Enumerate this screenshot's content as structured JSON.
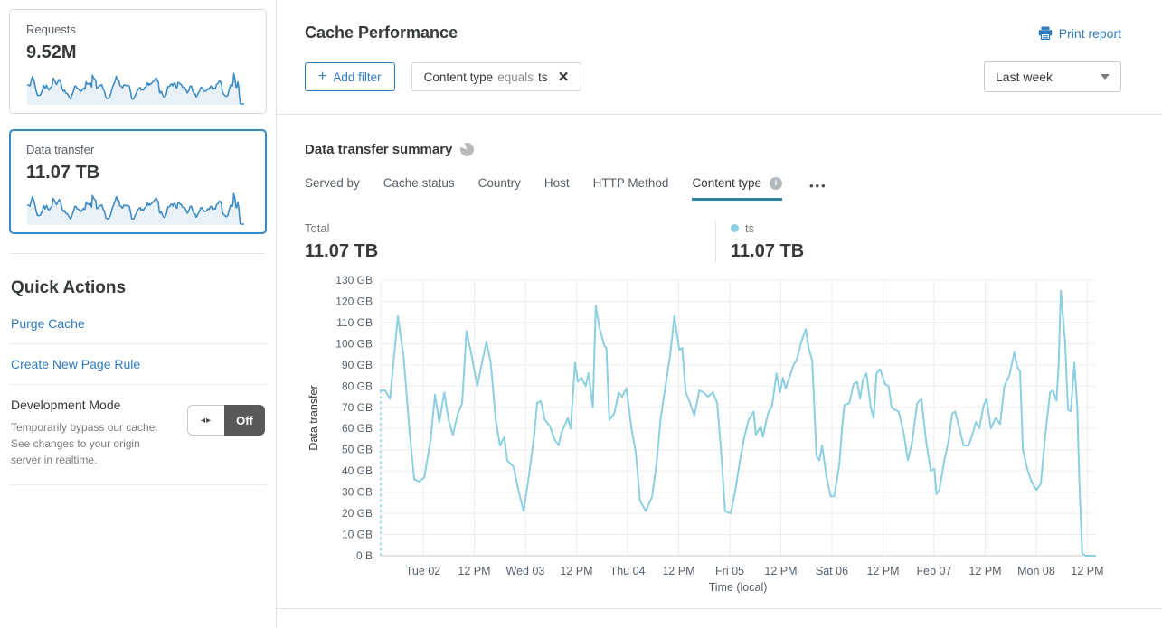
{
  "colors": {
    "accent_blue": "#2f7bbf",
    "selected_card_border": "#3788c7",
    "active_tab_underline": "#31809e",
    "series_line": "#8bcfe0",
    "sparkline_line": "#3f8cc5",
    "sparkline_fill": "#e9f1f8",
    "legend_dot": "#8ccfdf"
  },
  "icons": {
    "add_plus": "+",
    "chip_close": "×",
    "tabs_more": "•••",
    "tab_info": "i",
    "toggle_arrows": "◂▸"
  },
  "sidebar": {
    "cards": [
      {
        "label": "Requests",
        "value": "9.52M"
      },
      {
        "label": "Data transfer",
        "value": "11.07 TB"
      }
    ],
    "quick_actions": {
      "title": "Quick Actions",
      "links": [
        "Purge Cache",
        "Create New Page Rule"
      ],
      "development_mode": {
        "title": "Development Mode",
        "description": "Temporarily bypass our cache. See changes to your origin server in realtime.",
        "toggle_state": "Off"
      }
    }
  },
  "header": {
    "title": "Cache Performance",
    "print_label": "Print report"
  },
  "filters": {
    "add_label": "Add filter",
    "chip": {
      "field": "Content type",
      "operator": "equals",
      "value": "ts"
    },
    "range_selected": "Last week"
  },
  "summary": {
    "title": "Data transfer summary",
    "tabs": [
      {
        "label": "Served by"
      },
      {
        "label": "Cache status"
      },
      {
        "label": "Country"
      },
      {
        "label": "Host"
      },
      {
        "label": "HTTP Method"
      },
      {
        "label": "Content type",
        "active": true
      }
    ],
    "total_label": "Total",
    "total_value": "11.07 TB",
    "legend": {
      "name": "ts",
      "value": "11.07 TB"
    }
  },
  "chart_data": {
    "type": "line",
    "title": "Data transfer summary — ts",
    "xlabel": "Time (local)",
    "ylabel": "Data transfer",
    "ylim": [
      0,
      130
    ],
    "y_unit": "GB",
    "grid": true,
    "y_ticks": [
      "0 B",
      "10 GB",
      "20 GB",
      "30 GB",
      "40 GB",
      "50 GB",
      "60 GB",
      "70 GB",
      "80 GB",
      "90 GB",
      "100 GB",
      "110 GB",
      "120 GB",
      "130 GB"
    ],
    "x_ticks": [
      "Tue 02",
      "12 PM",
      "Wed 03",
      "12 PM",
      "Thu 04",
      "12 PM",
      "Fri 05",
      "12 PM",
      "Sat 06",
      "12 PM",
      "Feb 07",
      "12 PM",
      "Mon 08",
      "12 PM"
    ],
    "x_tick_positions_pct": [
      5.95,
      13.1,
      20.25,
      27.4,
      34.56,
      41.71,
      48.86,
      56.01,
      63.16,
      70.32,
      77.47,
      84.62,
      91.77,
      98.92
    ],
    "x_unit": "percent of time axis (one week, hourly samples)",
    "leading_dashed_to_zero": true,
    "series": [
      {
        "name": "ts",
        "color": "#8bcfe0",
        "points": [
          [
            0,
            78
          ],
          [
            0.6,
            78
          ],
          [
            1.3,
            74
          ],
          [
            2.4,
            113
          ],
          [
            3.2,
            94
          ],
          [
            4.1,
            56
          ],
          [
            4.7,
            36
          ],
          [
            5.4,
            35
          ],
          [
            6.1,
            37
          ],
          [
            7,
            55
          ],
          [
            7.6,
            76
          ],
          [
            8.2,
            63
          ],
          [
            8.9,
            77
          ],
          [
            9.5,
            64
          ],
          [
            10.1,
            57
          ],
          [
            10.8,
            67
          ],
          [
            11.4,
            72
          ],
          [
            12,
            106
          ],
          [
            12.7,
            95
          ],
          [
            13.5,
            80
          ],
          [
            14.8,
            101
          ],
          [
            15.4,
            91
          ],
          [
            16.1,
            64
          ],
          [
            16.7,
            52
          ],
          [
            17.3,
            56
          ],
          [
            17.7,
            45
          ],
          [
            18.6,
            42
          ],
          [
            19.2,
            32
          ],
          [
            20,
            21
          ],
          [
            20.6,
            34
          ],
          [
            21.5,
            57
          ],
          [
            21.9,
            72
          ],
          [
            22.4,
            73
          ],
          [
            23,
            64
          ],
          [
            23.7,
            61
          ],
          [
            24.3,
            55
          ],
          [
            24.9,
            52
          ],
          [
            25.3,
            58
          ],
          [
            26.2,
            65
          ],
          [
            26.6,
            60
          ],
          [
            27.2,
            91
          ],
          [
            27.6,
            82
          ],
          [
            28.1,
            84
          ],
          [
            28.7,
            80
          ],
          [
            29.1,
            86
          ],
          [
            29.7,
            70
          ],
          [
            30.1,
            118
          ],
          [
            30.6,
            108
          ],
          [
            31.3,
            99
          ],
          [
            31.6,
            98
          ],
          [
            32,
            64
          ],
          [
            32.7,
            67
          ],
          [
            33.3,
            77
          ],
          [
            33.8,
            75
          ],
          [
            34.4,
            79
          ],
          [
            35.1,
            60
          ],
          [
            35.7,
            49
          ],
          [
            36.3,
            26
          ],
          [
            37.1,
            21
          ],
          [
            38,
            28
          ],
          [
            38.6,
            43
          ],
          [
            39.2,
            65
          ],
          [
            39.9,
            81
          ],
          [
            40.5,
            94
          ],
          [
            41.1,
            113
          ],
          [
            41.8,
            97
          ],
          [
            42.2,
            98
          ],
          [
            42.7,
            77
          ],
          [
            43.3,
            72
          ],
          [
            43.9,
            66
          ],
          [
            44.6,
            78
          ],
          [
            45.2,
            77
          ],
          [
            45.8,
            75
          ],
          [
            46.5,
            77
          ],
          [
            47.1,
            72
          ],
          [
            47.7,
            47
          ],
          [
            48.2,
            21
          ],
          [
            49,
            20
          ],
          [
            49.6,
            30
          ],
          [
            50.3,
            45
          ],
          [
            50.9,
            56
          ],
          [
            51.5,
            64
          ],
          [
            52.2,
            68
          ],
          [
            52.5,
            57
          ],
          [
            53.2,
            61
          ],
          [
            53.5,
            56
          ],
          [
            54.2,
            67
          ],
          [
            54.8,
            71
          ],
          [
            55.4,
            86
          ],
          [
            55.9,
            77
          ],
          [
            56.3,
            84
          ],
          [
            56.7,
            79
          ],
          [
            57.2,
            84
          ],
          [
            57.8,
            90
          ],
          [
            58.2,
            92
          ],
          [
            58.9,
            101
          ],
          [
            59.5,
            107
          ],
          [
            59.9,
            98
          ],
          [
            60.4,
            92
          ],
          [
            61,
            47
          ],
          [
            61.4,
            45
          ],
          [
            61.8,
            52
          ],
          [
            62.4,
            37
          ],
          [
            63,
            28
          ],
          [
            63.5,
            28
          ],
          [
            64.2,
            43
          ],
          [
            64.6,
            61
          ],
          [
            64.9,
            71
          ],
          [
            65.6,
            72
          ],
          [
            66.2,
            81
          ],
          [
            66.7,
            82
          ],
          [
            67.1,
            74
          ],
          [
            67.5,
            83
          ],
          [
            68,
            86
          ],
          [
            68.6,
            70
          ],
          [
            69,
            65
          ],
          [
            69.4,
            86
          ],
          [
            69.9,
            88
          ],
          [
            70.3,
            84
          ],
          [
            70.6,
            81
          ],
          [
            71.1,
            80
          ],
          [
            71.5,
            70
          ],
          [
            71.9,
            69
          ],
          [
            72.5,
            68
          ],
          [
            73.2,
            58
          ],
          [
            73.8,
            45
          ],
          [
            74.4,
            54
          ],
          [
            75.1,
            72
          ],
          [
            75.7,
            74
          ],
          [
            76.3,
            55
          ],
          [
            77,
            40
          ],
          [
            77.5,
            41
          ],
          [
            77.8,
            29
          ],
          [
            78.2,
            31
          ],
          [
            78.9,
            45
          ],
          [
            79.5,
            54
          ],
          [
            80,
            67
          ],
          [
            80.4,
            68
          ],
          [
            81,
            60
          ],
          [
            81.6,
            52
          ],
          [
            82.3,
            52
          ],
          [
            82.9,
            58
          ],
          [
            83.3,
            63
          ],
          [
            83.8,
            60
          ],
          [
            84.4,
            71
          ],
          [
            84.8,
            74
          ],
          [
            85.4,
            60
          ],
          [
            86.1,
            65
          ],
          [
            86.7,
            62
          ],
          [
            87.3,
            80
          ],
          [
            88,
            85
          ],
          [
            88.7,
            96
          ],
          [
            89.1,
            89
          ],
          [
            89.5,
            87
          ],
          [
            89.9,
            50
          ],
          [
            90.5,
            41
          ],
          [
            91.1,
            35
          ],
          [
            91.8,
            31
          ],
          [
            92.4,
            34
          ],
          [
            93,
            56
          ],
          [
            93.7,
            77
          ],
          [
            94.1,
            78
          ],
          [
            94.6,
            73
          ],
          [
            94.9,
            90
          ],
          [
            95.2,
            125
          ],
          [
            95.8,
            101
          ],
          [
            96.2,
            69
          ],
          [
            96.6,
            68
          ],
          [
            97.1,
            91
          ],
          [
            97.5,
            70
          ],
          [
            97.8,
            35
          ],
          [
            98.2,
            1
          ],
          [
            98.7,
            0
          ],
          [
            99.4,
            0
          ],
          [
            100,
            0
          ]
        ]
      }
    ]
  }
}
